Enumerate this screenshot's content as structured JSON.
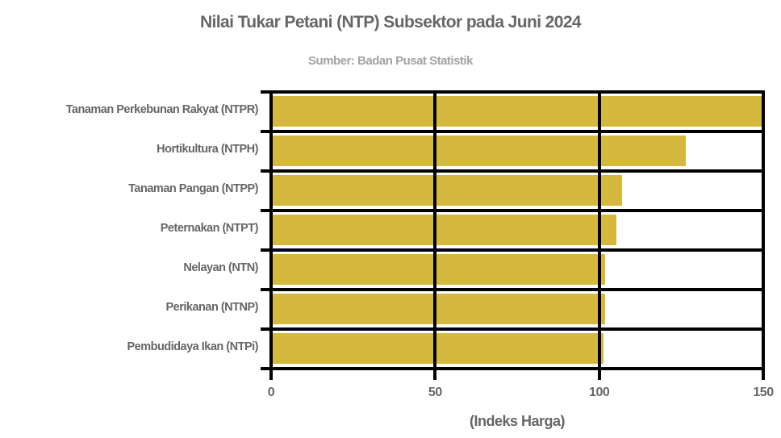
{
  "chart_data": {
    "type": "bar",
    "orientation": "horizontal",
    "title": "Nilai Tukar Petani (NTP) Subsektor pada Juni 2024",
    "subtitle": "Sumber: Badan Pusat Statistik",
    "xlabel": "(Indeks Harga)",
    "ylabel": "",
    "categories": [
      "Tanaman Perkebunan Rakyat (NTPR)",
      "Hortikultura (NTPH)",
      "Tanaman Pangan (NTPP)",
      "Peternakan (NTPT)",
      "Nelayan (NTN)",
      "Perikanan (NTNP)",
      "Pembudidaya Ikan (NTPi)"
    ],
    "values": [
      149.8,
      126.3,
      106.9,
      105.2,
      101.7,
      101.7,
      101.2
    ],
    "xlim": [
      0,
      150
    ],
    "xticks": [
      "0",
      "50",
      "100",
      "150"
    ],
    "grid": true,
    "legend": null,
    "bar_color": "#D4B93E"
  },
  "colors": {
    "bar": "#D4B93E",
    "title": "#666666",
    "subtitle": "#A3A3A3",
    "grid": "#000000"
  }
}
